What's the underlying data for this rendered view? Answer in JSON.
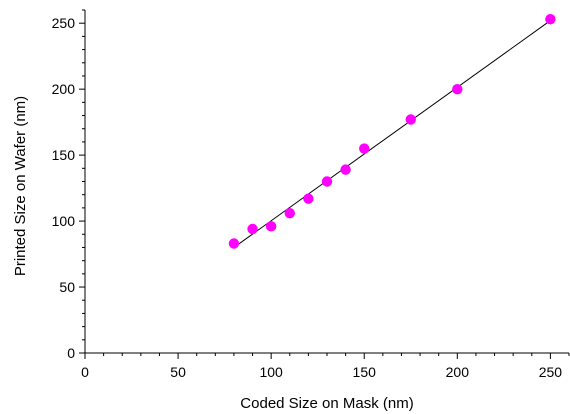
{
  "chart_data": {
    "type": "scatter",
    "title": "",
    "xlabel": "Coded Size on Mask (nm)",
    "ylabel": "Printed Size on Wafer (nm)",
    "xlim": [
      0,
      260
    ],
    "ylim": [
      0,
      260
    ],
    "x_ticks": [
      0,
      50,
      100,
      150,
      200,
      250
    ],
    "y_ticks": [
      0,
      50,
      100,
      150,
      200,
      250
    ],
    "grid": false,
    "legend": "none",
    "series": [
      {
        "x": [
          80,
          90,
          100,
          110,
          120,
          130,
          140,
          150,
          175,
          200,
          250
        ],
        "y": [
          83,
          94,
          96,
          106,
          117,
          130,
          139,
          155,
          177,
          200,
          253
        ],
        "color": "#ff00ff"
      }
    ],
    "fit_line": {
      "x": [
        80,
        250
      ],
      "y": [
        80,
        252
      ],
      "color": "#000000"
    }
  }
}
